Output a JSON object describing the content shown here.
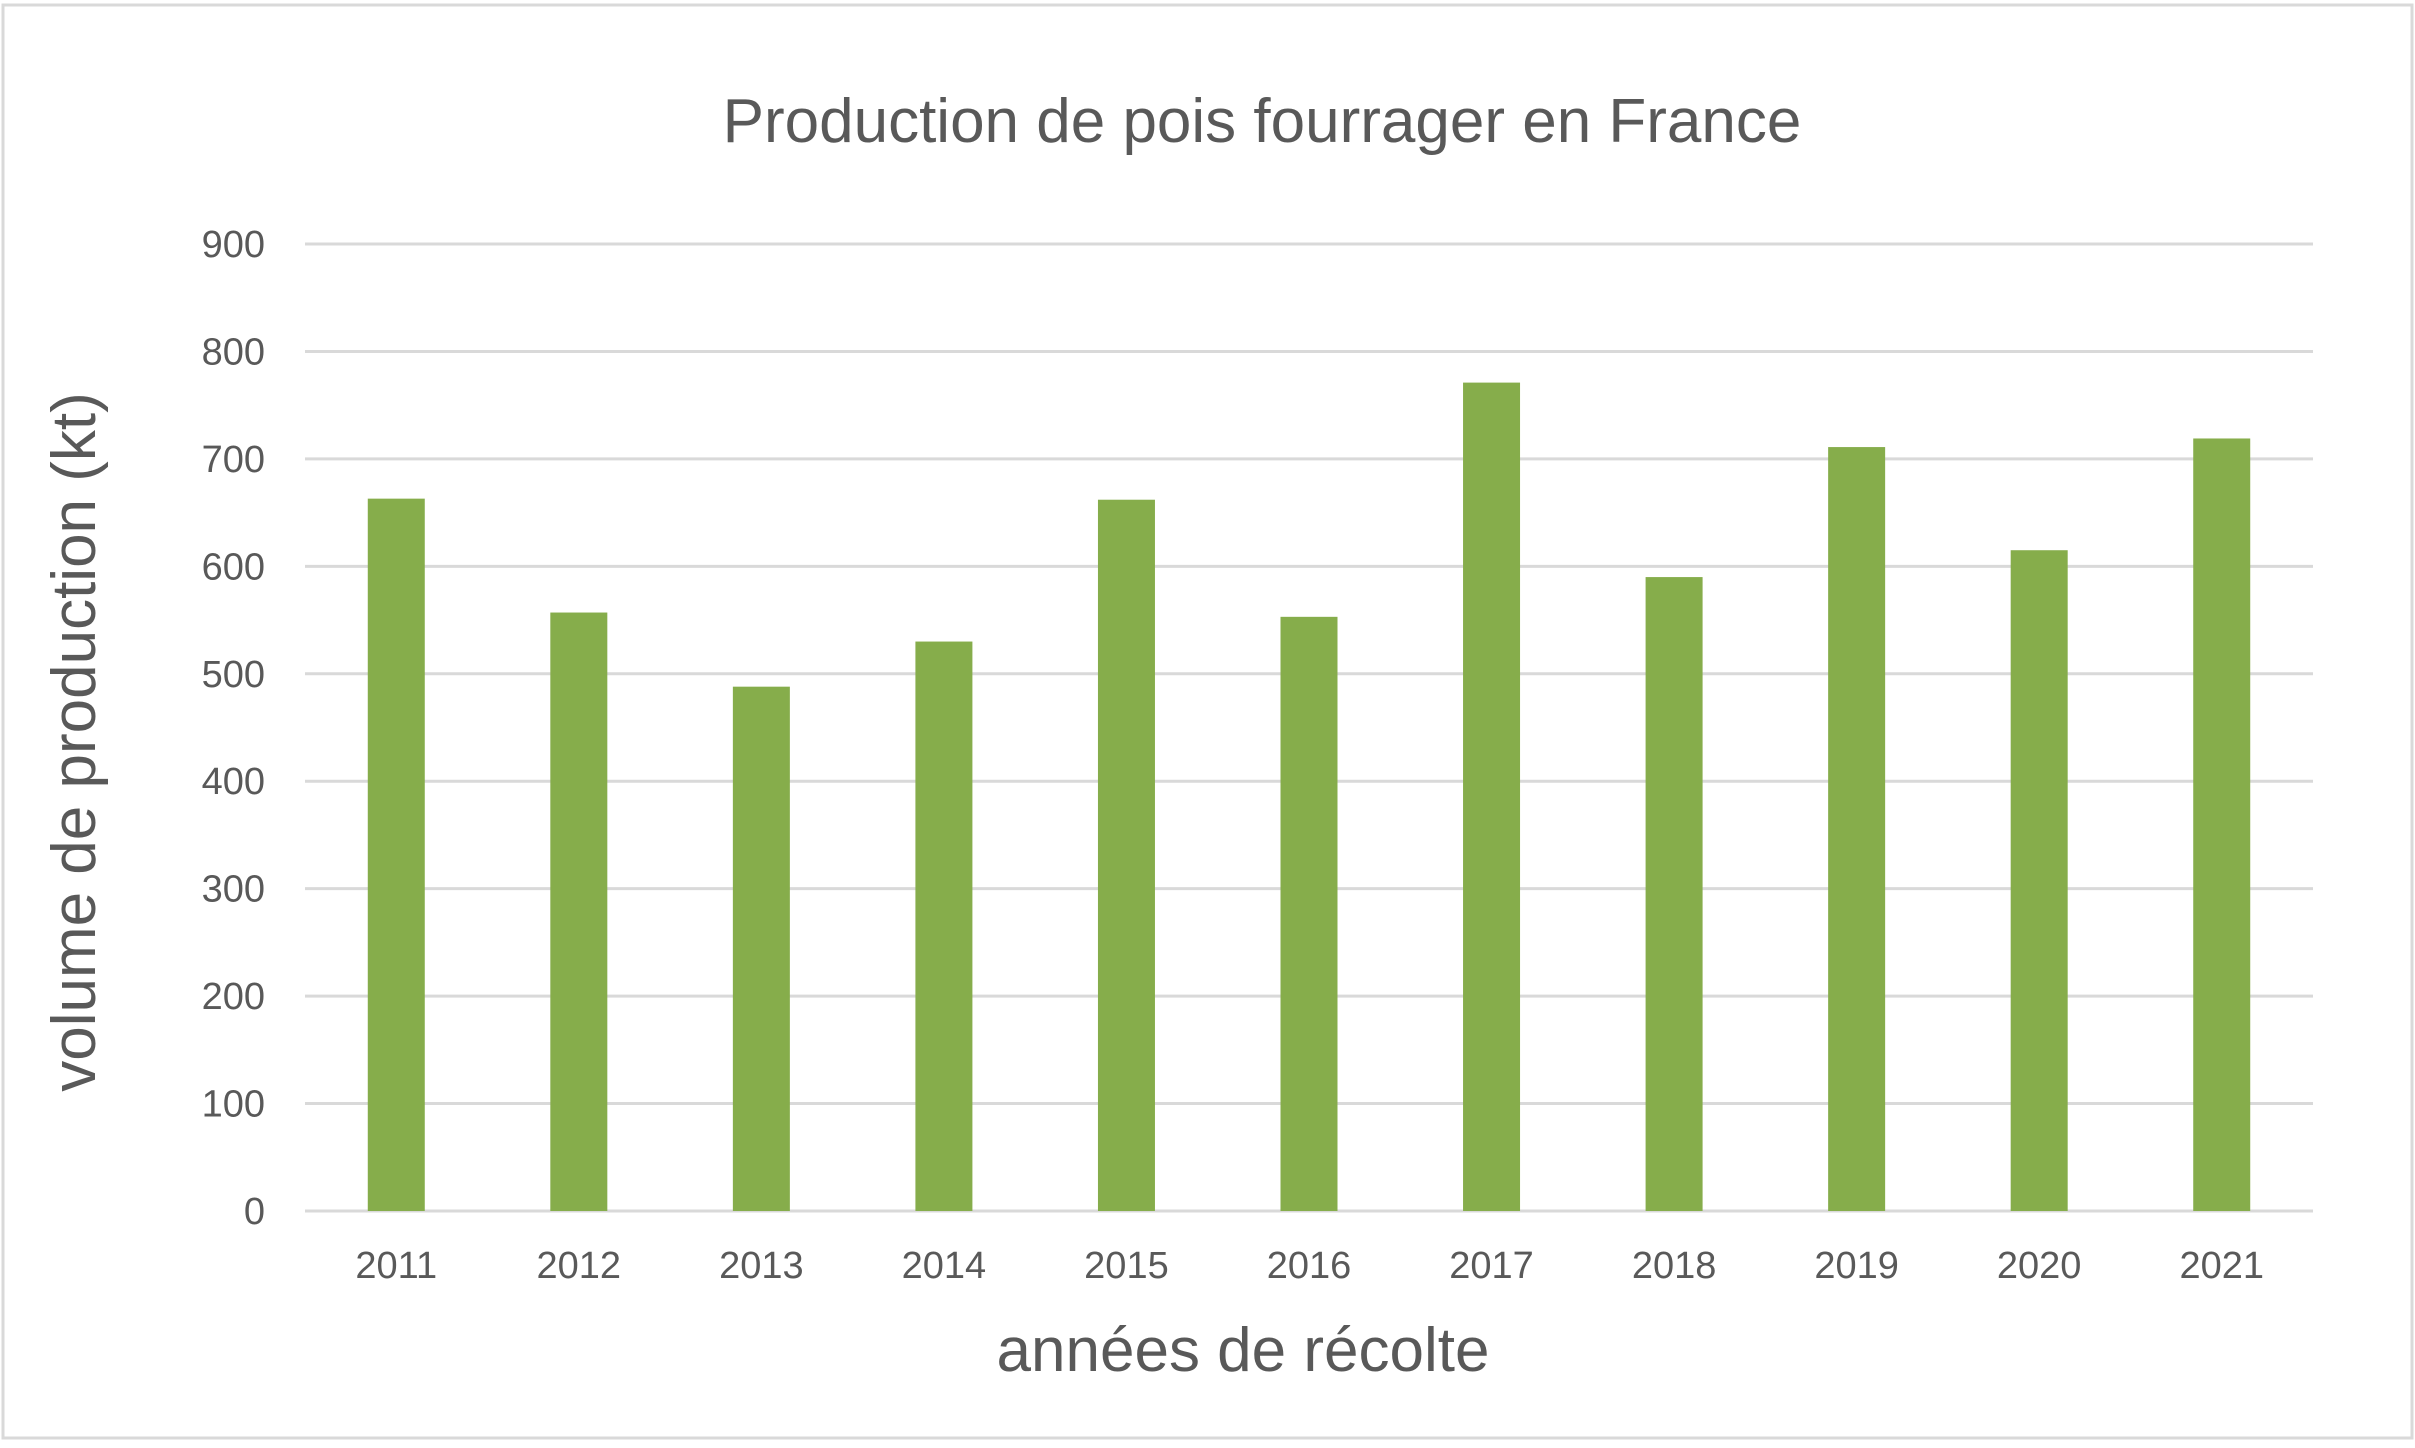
{
  "chart_data": {
    "type": "bar",
    "title": "Production de pois fourrager en France",
    "xlabel": "années de récolte",
    "ylabel": "volume de production (kt)",
    "categories": [
      "2011",
      "2012",
      "2013",
      "2014",
      "2015",
      "2016",
      "2017",
      "2018",
      "2019",
      "2020",
      "2021"
    ],
    "values": [
      663,
      557,
      488,
      530,
      662,
      553,
      771,
      590,
      711,
      615,
      719
    ],
    "ylim": [
      0,
      900
    ],
    "yticks": [
      0,
      100,
      200,
      300,
      400,
      500,
      600,
      700,
      800,
      900
    ],
    "ytick_labels": [
      "0",
      "100",
      "200",
      "300",
      "400",
      "500",
      "600",
      "700",
      "800",
      "900"
    ],
    "bar_color": "#86ad4b",
    "grid": true,
    "legend": "none"
  }
}
